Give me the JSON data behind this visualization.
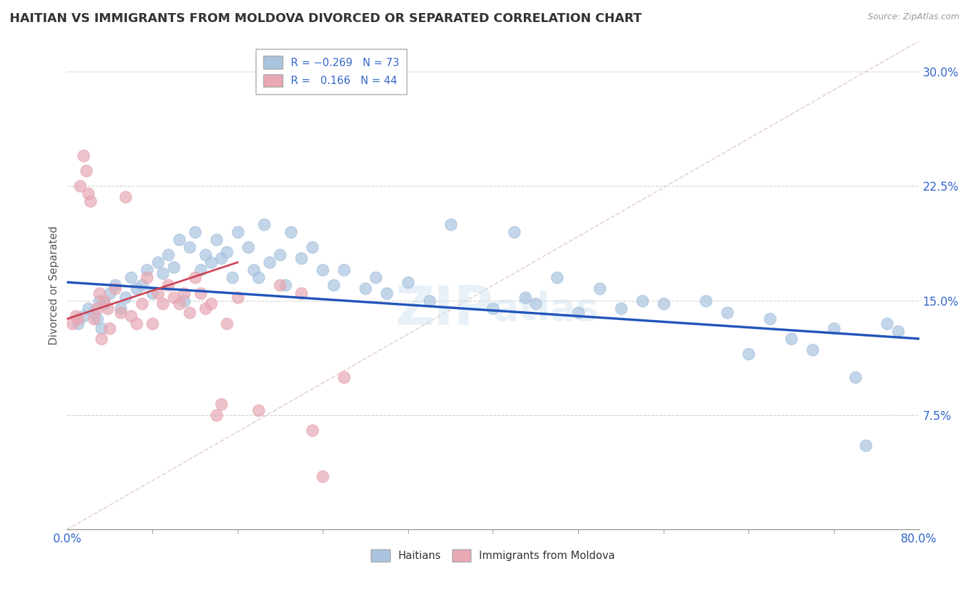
{
  "title": "HAITIAN VS IMMIGRANTS FROM MOLDOVA DIVORCED OR SEPARATED CORRELATION CHART",
  "source": "Source: ZipAtlas.com",
  "ylabel": "Divorced or Separated",
  "xlim": [
    0.0,
    80.0
  ],
  "ylim": [
    0.0,
    32.0
  ],
  "yticks": [
    7.5,
    15.0,
    22.5,
    30.0
  ],
  "xtick_positions": [
    0.0,
    80.0
  ],
  "xtick_labels": [
    "0.0%",
    "80.0%"
  ],
  "legend_label1": "Haitians",
  "legend_label2": "Immigrants from Moldova",
  "blue_color": "#aac4df",
  "pink_color": "#e8a8b4",
  "line_blue": "#2255bb",
  "line_pink": "#cc4455",
  "watermark": "ZIPatlas",
  "blue_scatter_x": [
    1.0,
    1.5,
    2.0,
    2.5,
    2.8,
    3.0,
    3.2,
    3.5,
    4.0,
    4.5,
    5.0,
    5.5,
    6.0,
    6.5,
    7.0,
    7.5,
    8.0,
    8.5,
    9.0,
    9.5,
    10.0,
    10.5,
    11.0,
    11.5,
    12.0,
    12.5,
    13.0,
    13.5,
    14.0,
    14.5,
    15.0,
    15.5,
    16.0,
    17.0,
    17.5,
    18.0,
    18.5,
    19.0,
    20.0,
    20.5,
    21.0,
    22.0,
    23.0,
    24.0,
    25.0,
    26.0,
    28.0,
    29.0,
    30.0,
    32.0,
    34.0,
    36.0,
    40.0,
    42.0,
    43.0,
    44.0,
    46.0,
    48.0,
    50.0,
    52.0,
    54.0,
    56.0,
    60.0,
    62.0,
    64.0,
    66.0,
    68.0,
    70.0,
    72.0,
    74.0,
    75.0,
    77.0,
    78.0
  ],
  "blue_scatter_y": [
    13.5,
    14.0,
    14.5,
    14.2,
    13.8,
    15.0,
    13.2,
    14.8,
    15.5,
    16.0,
    14.5,
    15.2,
    16.5,
    15.8,
    16.0,
    17.0,
    15.5,
    17.5,
    16.8,
    18.0,
    17.2,
    19.0,
    15.0,
    18.5,
    19.5,
    17.0,
    18.0,
    17.5,
    19.0,
    17.8,
    18.2,
    16.5,
    19.5,
    18.5,
    17.0,
    16.5,
    20.0,
    17.5,
    18.0,
    16.0,
    19.5,
    17.8,
    18.5,
    17.0,
    16.0,
    17.0,
    15.8,
    16.5,
    15.5,
    16.2,
    15.0,
    20.0,
    14.5,
    19.5,
    15.2,
    14.8,
    16.5,
    14.2,
    15.8,
    14.5,
    15.0,
    14.8,
    15.0,
    14.2,
    11.5,
    13.8,
    12.5,
    11.8,
    13.2,
    10.0,
    5.5,
    13.5,
    13.0
  ],
  "pink_scatter_x": [
    0.5,
    0.8,
    1.0,
    1.2,
    1.5,
    1.8,
    2.0,
    2.2,
    2.5,
    2.8,
    3.0,
    3.2,
    3.5,
    3.8,
    4.0,
    4.5,
    5.0,
    5.5,
    6.0,
    6.5,
    7.0,
    7.5,
    8.0,
    8.5,
    9.0,
    9.5,
    10.0,
    10.5,
    11.0,
    11.5,
    12.0,
    12.5,
    13.0,
    13.5,
    14.0,
    14.5,
    15.0,
    16.0,
    18.0,
    20.0,
    22.0,
    23.0,
    24.0,
    26.0
  ],
  "pink_scatter_y": [
    13.5,
    14.0,
    13.8,
    22.5,
    24.5,
    23.5,
    22.0,
    21.5,
    13.8,
    14.5,
    15.5,
    12.5,
    15.0,
    14.5,
    13.2,
    15.8,
    14.2,
    21.8,
    14.0,
    13.5,
    14.8,
    16.5,
    13.5,
    15.5,
    14.8,
    16.0,
    15.2,
    14.8,
    15.5,
    14.2,
    16.5,
    15.5,
    14.5,
    14.8,
    7.5,
    8.2,
    13.5,
    15.2,
    7.8,
    16.0,
    15.5,
    6.5,
    3.5,
    10.0
  ],
  "blue_line_x": [
    0.0,
    80.0
  ],
  "blue_line_y": [
    16.2,
    12.5
  ],
  "pink_line_x": [
    0.0,
    16.0
  ],
  "pink_line_y": [
    13.8,
    17.5
  ],
  "diag_line_x": [
    0.0,
    80.0
  ],
  "diag_line_y": [
    0.0,
    32.0
  ]
}
